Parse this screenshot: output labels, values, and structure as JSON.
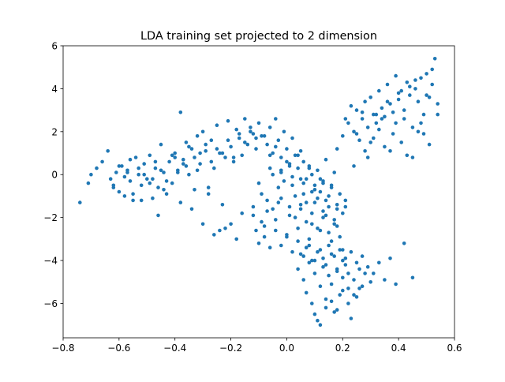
{
  "chart_data": {
    "type": "scatter",
    "title": "LDA training set projected to 2 dimension",
    "xlabel": "",
    "ylabel": "",
    "xlim": [
      -0.8,
      0.6
    ],
    "ylim": [
      -7.6,
      6.0
    ],
    "xticks": [
      -0.8,
      -0.6,
      -0.4,
      -0.2,
      0.0,
      0.2,
      0.4,
      0.6
    ],
    "xtick_labels": [
      "−0.8",
      "−0.6",
      "−0.4",
      "−0.2",
      "0.0",
      "0.2",
      "0.4",
      "0.6"
    ],
    "yticks": [
      -6,
      -4,
      -2,
      0,
      2,
      4,
      6
    ],
    "ytick_labels": [
      "−6",
      "−4",
      "−2",
      "0",
      "2",
      "4",
      "6"
    ],
    "grid": false,
    "legend": "none",
    "marker_color": "#1f77b4",
    "series": [
      {
        "x": [
          -0.74,
          -0.71,
          -0.7,
          -0.68,
          -0.66,
          -0.64,
          -0.63,
          -0.62,
          -0.61,
          -0.6,
          -0.59,
          -0.58,
          -0.57,
          -0.56,
          -0.55,
          -0.54,
          -0.53,
          -0.52,
          -0.51,
          -0.5,
          -0.49,
          -0.48,
          -0.47,
          -0.46,
          -0.45,
          -0.44,
          -0.43,
          -0.42,
          -0.41,
          -0.4,
          -0.39,
          -0.38,
          -0.37,
          -0.36,
          -0.35,
          -0.34,
          -0.33,
          -0.32,
          -0.31,
          -0.3,
          -0.29,
          -0.28,
          -0.27,
          -0.26,
          -0.25,
          -0.24,
          -0.23,
          -0.22,
          -0.21,
          -0.2,
          -0.19,
          -0.18,
          -0.17,
          -0.16,
          -0.15,
          -0.14,
          -0.13,
          -0.12,
          -0.11,
          -0.1,
          -0.6,
          -0.58,
          -0.56,
          -0.55,
          -0.53,
          -0.51,
          -0.49,
          -0.47,
          -0.45,
          -0.43,
          -0.41,
          -0.39,
          -0.37,
          -0.35,
          -0.33,
          -0.31,
          -0.29,
          -0.27,
          -0.25,
          -0.23,
          -0.21,
          -0.19,
          -0.17,
          -0.15,
          -0.13,
          -0.11,
          -0.09,
          -0.62,
          -0.57,
          -0.52,
          -0.48,
          -0.44,
          -0.4,
          -0.36,
          -0.32,
          -0.28,
          -0.24,
          -0.2,
          -0.16,
          -0.12,
          -0.38,
          -0.3,
          -0.22,
          -0.46,
          -0.34,
          -0.26,
          -0.18
        ],
        "y": [
          -1.3,
          -0.4,
          0.0,
          0.3,
          0.6,
          1.1,
          -0.2,
          -0.6,
          0.1,
          -0.8,
          0.4,
          -1.0,
          0.2,
          -0.3,
          -1.2,
          0.8,
          0.0,
          -0.5,
          0.5,
          -0.2,
          0.9,
          -1.1,
          0.3,
          -0.6,
          1.4,
          0.1,
          -0.9,
          0.6,
          -0.4,
          1.0,
          0.2,
          -1.3,
          0.7,
          1.5,
          0.0,
          1.2,
          -0.7,
          1.8,
          0.5,
          2.0,
          1.1,
          -0.9,
          1.6,
          0.3,
          2.3,
          1.0,
          -1.4,
          0.8,
          2.5,
          1.3,
          0.6,
          2.1,
          1.7,
          0.9,
          2.6,
          1.4,
          2.2,
          1.9,
          1.2,
          2.4,
          0.4,
          -0.1,
          0.7,
          -0.9,
          0.3,
          0.0,
          -0.4,
          0.6,
          0.2,
          -0.3,
          0.9,
          0.1,
          0.5,
          1.3,
          0.8,
          1.0,
          1.4,
          0.6,
          1.2,
          1.0,
          1.6,
          0.8,
          1.9,
          1.5,
          2.0,
          1.7,
          1.8,
          -0.5,
          0.1,
          -1.2,
          -0.2,
          -0.7,
          0.8,
          0.4,
          0.2,
          -0.6,
          -2.6,
          -2.3,
          -1.8,
          -1.5,
          2.9,
          -2.3,
          -2.5,
          -1.9,
          -1.6,
          -2.8,
          -3.0
        ]
      },
      {
        "x": [
          -0.08,
          -0.07,
          -0.06,
          -0.05,
          -0.04,
          -0.03,
          -0.02,
          -0.01,
          0.0,
          0.01,
          0.02,
          0.03,
          0.04,
          0.05,
          0.06,
          0.07,
          0.08,
          0.09,
          0.1,
          0.11,
          0.12,
          0.13,
          0.14,
          0.15,
          0.16,
          0.17,
          0.18,
          0.19,
          0.2,
          -0.06,
          -0.04,
          -0.02,
          0.0,
          0.02,
          0.04,
          0.06,
          0.08,
          0.1,
          0.12,
          0.14,
          0.16,
          0.18,
          -0.05,
          -0.03,
          -0.01,
          0.01,
          0.03,
          0.05,
          0.07,
          0.09,
          0.11,
          0.13,
          0.15,
          -0.1,
          -0.09,
          -0.07,
          -0.05,
          -0.02,
          0.01,
          0.03,
          0.05,
          0.07,
          0.09,
          0.11,
          0.13,
          0.15,
          0.17,
          0.19,
          0.21,
          -0.08,
          -0.04,
          0.0,
          0.04,
          0.08,
          0.12,
          0.16,
          0.2,
          -0.12,
          -0.11,
          -0.1,
          -0.09,
          -0.08,
          -0.06,
          -0.04,
          -0.02,
          0.0,
          0.02,
          0.04,
          0.06,
          0.08,
          0.1,
          0.12,
          0.14,
          0.16,
          0.18,
          0.2,
          0.22,
          -0.07,
          -0.03,
          0.01,
          0.05,
          0.09,
          0.13,
          0.17,
          0.21,
          -0.06,
          -0.02,
          0.02,
          0.06,
          0.1,
          0.14,
          0.18
        ],
        "y": [
          1.8,
          1.4,
          2.2,
          1.0,
          2.6,
          1.6,
          0.8,
          2.0,
          1.2,
          0.5,
          1.7,
          0.9,
          0.3,
          1.1,
          0.6,
          -0.2,
          0.4,
          0.0,
          -0.5,
          0.2,
          -0.8,
          -0.3,
          0.7,
          -1.0,
          -0.6,
          0.1,
          -1.4,
          -0.9,
          -1.8,
          0.9,
          1.3,
          0.2,
          0.6,
          -0.1,
          0.9,
          -0.4,
          0.3,
          -0.7,
          -0.2,
          -1.2,
          -0.5,
          -1.6,
          0.0,
          -0.6,
          -0.3,
          0.4,
          -1.0,
          -0.2,
          -1.3,
          -0.8,
          -1.1,
          -0.4,
          -1.5,
          -0.4,
          -0.9,
          -1.2,
          -1.6,
          -1.1,
          -1.5,
          -2.0,
          -1.4,
          -2.2,
          -1.8,
          -2.5,
          -2.0,
          -2.7,
          -2.3,
          -2.9,
          -1.2,
          -2.4,
          -2.1,
          -2.8,
          -2.5,
          -3.0,
          -2.6,
          -3.1,
          -3.5,
          -1.9,
          -2.6,
          -3.2,
          -2.2,
          -2.9,
          -3.4,
          -2.6,
          -3.3,
          -2.9,
          -3.6,
          -3.1,
          -3.8,
          -3.3,
          -4.0,
          -3.5,
          -4.2,
          -3.7,
          -4.4,
          -4.0,
          -4.6,
          -1.7,
          -1.3,
          -1.9,
          -1.6,
          -2.3,
          -1.7,
          -2.1,
          -1.5,
          0.3,
          0.1,
          -0.5,
          -0.9,
          -1.3,
          -1.9,
          -2.4
        ]
      },
      {
        "x": [
          0.04,
          0.06,
          0.07,
          0.08,
          0.09,
          0.1,
          0.11,
          0.12,
          0.13,
          0.14,
          0.15,
          0.16,
          0.17,
          0.18,
          0.19,
          0.2,
          0.21,
          0.22,
          0.23,
          0.24,
          0.25,
          0.26,
          0.27,
          0.28,
          0.3,
          0.33,
          0.37,
          0.42,
          0.05,
          0.07,
          0.09,
          0.11,
          0.13,
          0.15,
          0.17,
          0.19,
          0.21,
          0.23,
          0.25,
          0.27,
          0.29,
          0.31,
          0.35,
          0.39,
          0.45,
          0.1,
          0.12,
          0.14,
          0.16,
          0.18,
          0.2,
          0.22,
          0.24,
          0.26
        ],
        "y": [
          -4.4,
          -4.9,
          -5.5,
          -4.1,
          -6.0,
          -4.6,
          -6.8,
          -5.2,
          -4.3,
          -5.8,
          -4.7,
          -5.1,
          -6.4,
          -4.5,
          -5.6,
          -4.8,
          -4.2,
          -5.3,
          -6.7,
          -4.9,
          -5.7,
          -4.4,
          -5.2,
          -4.6,
          -5.0,
          -4.1,
          -3.9,
          -3.2,
          -3.7,
          -3.4,
          -4.0,
          -3.6,
          -3.9,
          -3.3,
          -3.8,
          -3.5,
          -3.9,
          -3.6,
          -4.1,
          -3.8,
          -4.3,
          -4.6,
          -4.9,
          -5.1,
          -4.8,
          -6.5,
          -7.0,
          -6.2,
          -5.9,
          -6.3,
          -5.4,
          -6.0,
          -5.6,
          -5.3
        ]
      },
      {
        "x": [
          0.18,
          0.2,
          0.22,
          0.24,
          0.25,
          0.26,
          0.27,
          0.28,
          0.29,
          0.3,
          0.31,
          0.32,
          0.33,
          0.34,
          0.35,
          0.36,
          0.37,
          0.38,
          0.39,
          0.4,
          0.41,
          0.42,
          0.43,
          0.44,
          0.45,
          0.46,
          0.47,
          0.48,
          0.49,
          0.5,
          0.51,
          0.52,
          0.53,
          0.54,
          0.54,
          0.21,
          0.23,
          0.25,
          0.27,
          0.29,
          0.31,
          0.33,
          0.35,
          0.37,
          0.39,
          0.41,
          0.43,
          0.45,
          0.47,
          0.49,
          0.51,
          0.24,
          0.28,
          0.32,
          0.36,
          0.4,
          0.44,
          0.48,
          0.52,
          0.3,
          0.34,
          0.38,
          0.42,
          0.46,
          0.5
        ],
        "y": [
          1.2,
          1.8,
          2.4,
          2.0,
          3.0,
          1.6,
          2.6,
          3.4,
          2.2,
          3.6,
          2.8,
          2.4,
          3.9,
          3.1,
          2.7,
          4.2,
          3.3,
          2.9,
          4.6,
          3.5,
          3.9,
          2.6,
          4.3,
          3.7,
          2.2,
          4.0,
          3.4,
          4.5,
          2.8,
          3.7,
          1.4,
          4.9,
          5.4,
          3.3,
          2.8,
          2.6,
          3.2,
          1.9,
          2.9,
          0.8,
          1.7,
          2.1,
          1.3,
          1.1,
          2.4,
          1.5,
          0.9,
          0.8,
          2.0,
          1.9,
          3.6,
          0.4,
          1.1,
          2.8,
          3.4,
          3.8,
          4.1,
          2.4,
          4.2,
          1.5,
          2.6,
          1.9,
          3.0,
          4.4,
          4.7
        ]
      }
    ]
  }
}
